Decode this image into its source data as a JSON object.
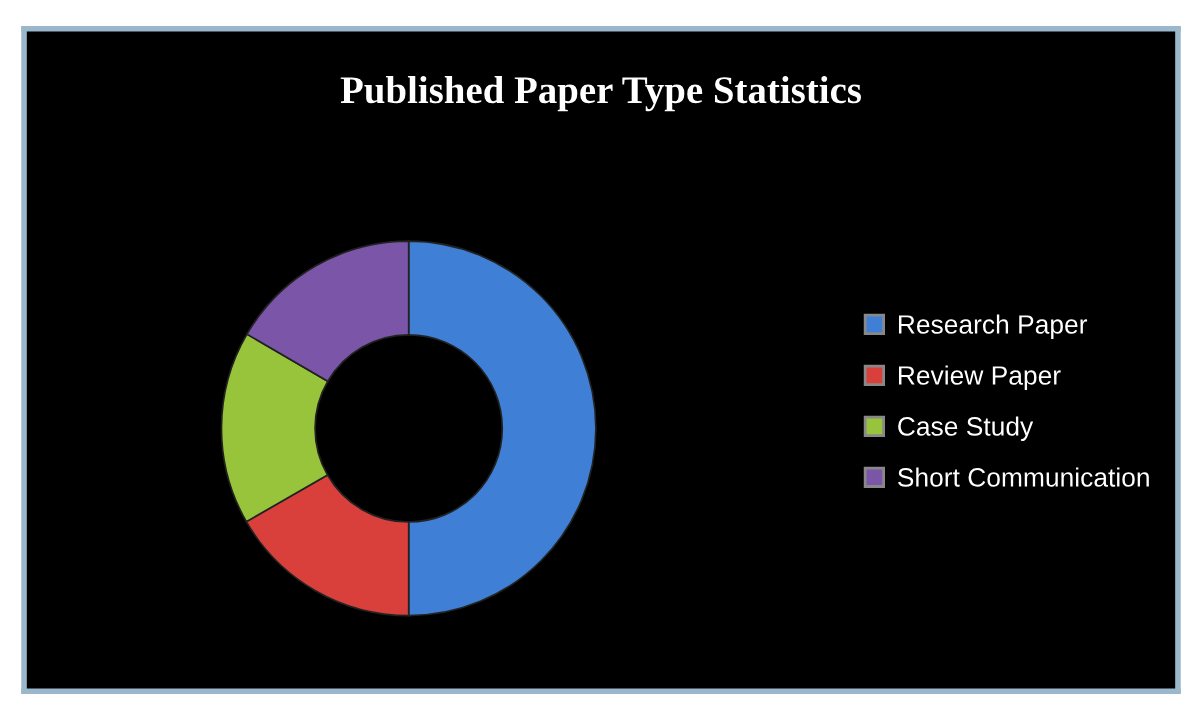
{
  "chart_data": {
    "type": "donut",
    "title": "Published Paper Type Statistics",
    "categories": [
      "Research Paper",
      "Review Paper",
      "Case Study",
      "Short Communication"
    ],
    "values": [
      50,
      16.7,
      16.7,
      16.6
    ],
    "colors": [
      "#3f7fd6",
      "#d9403c",
      "#97c43a",
      "#7b55a8"
    ],
    "legend": "right"
  }
}
